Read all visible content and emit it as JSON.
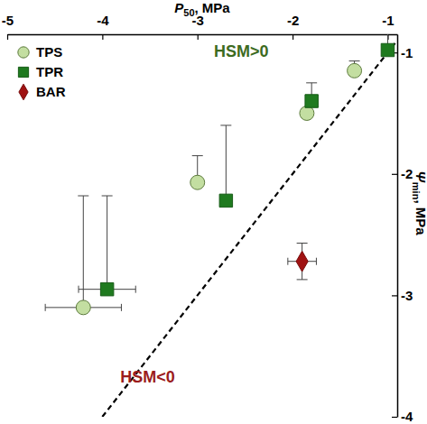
{
  "chart_data": {
    "type": "scatter",
    "x_label": {
      "symbol": "P",
      "subscript": "50",
      "unit": ", MPa"
    },
    "y_label": {
      "symbol": "Ψ",
      "subscript": "min",
      "unit": ", MPa"
    },
    "xlim": [
      -5,
      -0.9
    ],
    "xticks": [
      -5,
      -4,
      -3,
      -2,
      -1
    ],
    "ylim": [
      -4,
      -0.85
    ],
    "yticks": [
      -1,
      -2,
      -3,
      -4
    ],
    "legend": "upper left",
    "grid": false,
    "annotations": [
      {
        "text": "HSM>0",
        "color": "#3d6b1f"
      },
      {
        "text": "HSM<0",
        "color": "#9b1c1c"
      }
    ],
    "series": [
      {
        "name": "TPS",
        "color": "#c3dea1",
        "marker": "circle",
        "x": [
          -4.2,
          -3.0,
          -1.85,
          -1.35
        ],
        "values": [
          -3.1,
          -2.07,
          -1.5,
          -1.15
        ],
        "x_err": [
          0.4,
          null,
          null,
          null
        ],
        "y_err_plus": [
          0.92,
          0.22,
          null,
          0.08
        ]
      },
      {
        "name": "TPR",
        "color": "#1f7a1f",
        "marker": "square",
        "x": [
          -3.95,
          -2.7,
          -1.8,
          -1.0
        ],
        "values": [
          -2.95,
          -2.22,
          -1.4,
          -0.98
        ],
        "x_err": [
          0.3,
          null,
          null,
          null
        ],
        "y_err_plus": [
          0.77,
          0.62,
          0.15,
          0.15
        ]
      },
      {
        "name": "BAR",
        "color": "#a01212",
        "marker": "diamond",
        "x": [
          -1.9
        ],
        "values": [
          -2.72
        ],
        "x_err": [
          0.15
        ],
        "y_err_plus": [
          0.15
        ],
        "y_err_minus": [
          0.15
        ]
      }
    ]
  }
}
